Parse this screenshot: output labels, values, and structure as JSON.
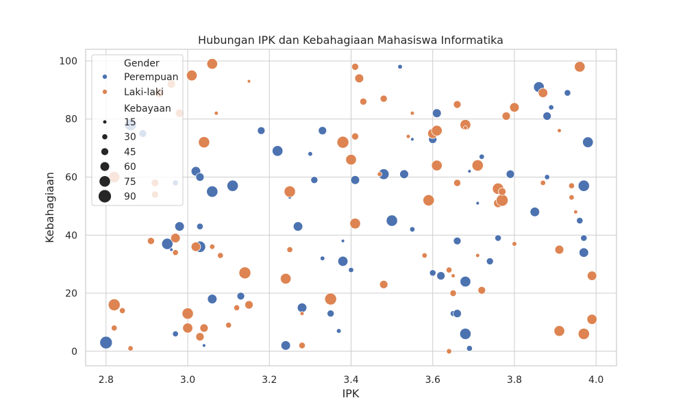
{
  "chart_data": {
    "type": "scatter",
    "title": "Hubungan IPK dan Kebahagiaan Mahasiswa Informatika",
    "xlabel": "IPK",
    "ylabel": "Kebahagiaan",
    "xlim": [
      2.75,
      4.05
    ],
    "ylim": [
      -5,
      104
    ],
    "xticks": [
      "2.8",
      "3.0",
      "3.2",
      "3.4",
      "3.6",
      "3.8",
      "4.0"
    ],
    "yticks": [
      "0",
      "20",
      "40",
      "60",
      "80",
      "100"
    ],
    "grid": true,
    "legend_position": "top-left",
    "hue_title": "Gender",
    "size_title": "Kebayaan",
    "size_legend": [
      "15",
      "30",
      "45",
      "60",
      "75",
      "90"
    ],
    "series": [
      {
        "name": "Perempuan",
        "color": "#4c72b0",
        "points": [
          [
            2.8,
            3,
            85
          ],
          [
            2.86,
            78,
            80
          ],
          [
            2.89,
            75,
            45
          ],
          [
            2.95,
            37,
            75
          ],
          [
            2.96,
            35,
            10
          ],
          [
            2.97,
            6,
            30
          ],
          [
            2.97,
            58,
            30
          ],
          [
            2.98,
            43,
            60
          ],
          [
            3.02,
            62,
            60
          ],
          [
            3.03,
            60,
            50
          ],
          [
            3.03,
            43,
            35
          ],
          [
            3.03,
            36,
            75
          ],
          [
            3.04,
            2,
            10
          ],
          [
            3.06,
            18,
            60
          ],
          [
            3.06,
            55,
            75
          ],
          [
            3.11,
            57,
            75
          ],
          [
            3.13,
            19,
            45
          ],
          [
            3.18,
            76,
            45
          ],
          [
            3.22,
            69,
            70
          ],
          [
            3.24,
            2,
            60
          ],
          [
            3.25,
            53,
            10
          ],
          [
            3.27,
            43,
            60
          ],
          [
            3.28,
            15,
            60
          ],
          [
            3.3,
            68,
            20
          ],
          [
            3.31,
            59,
            40
          ],
          [
            3.33,
            32,
            20
          ],
          [
            3.33,
            76,
            50
          ],
          [
            3.35,
            13,
            40
          ],
          [
            3.37,
            7,
            20
          ],
          [
            3.38,
            31,
            65
          ],
          [
            3.38,
            38,
            10
          ],
          [
            3.4,
            28,
            25
          ],
          [
            3.41,
            59,
            55
          ],
          [
            3.48,
            61,
            70
          ],
          [
            3.5,
            45,
            75
          ],
          [
            3.52,
            98,
            20
          ],
          [
            3.53,
            61,
            55
          ],
          [
            3.55,
            73,
            10
          ],
          [
            3.55,
            42,
            25
          ],
          [
            3.6,
            27,
            35
          ],
          [
            3.6,
            73,
            50
          ],
          [
            3.61,
            82,
            55
          ],
          [
            3.62,
            26,
            50
          ],
          [
            3.65,
            13,
            30
          ],
          [
            3.66,
            38,
            45
          ],
          [
            3.66,
            13,
            50
          ],
          [
            3.68,
            6,
            75
          ],
          [
            3.68,
            24,
            70
          ],
          [
            3.69,
            1,
            30
          ],
          [
            3.69,
            62,
            10
          ],
          [
            3.71,
            51,
            10
          ],
          [
            3.72,
            67,
            25
          ],
          [
            3.74,
            31,
            40
          ],
          [
            3.76,
            39,
            35
          ],
          [
            3.79,
            61,
            50
          ],
          [
            3.85,
            48,
            60
          ],
          [
            3.86,
            91,
            70
          ],
          [
            3.88,
            81,
            50
          ],
          [
            3.88,
            60,
            25
          ],
          [
            3.89,
            84,
            25
          ],
          [
            3.93,
            89,
            35
          ],
          [
            3.96,
            45,
            35
          ],
          [
            3.97,
            57,
            75
          ],
          [
            3.97,
            39,
            35
          ],
          [
            3.97,
            34,
            60
          ],
          [
            3.98,
            72,
            70
          ]
        ]
      },
      {
        "name": "Laki-laki",
        "color": "#dd8452",
        "points": [
          [
            2.82,
            60,
            75
          ],
          [
            2.82,
            16,
            80
          ],
          [
            2.82,
            8,
            30
          ],
          [
            2.84,
            14,
            30
          ],
          [
            2.86,
            1,
            25
          ],
          [
            2.91,
            38,
            40
          ],
          [
            2.92,
            58,
            45
          ],
          [
            2.92,
            54,
            40
          ],
          [
            2.93,
            89,
            55
          ],
          [
            2.96,
            92,
            50
          ],
          [
            2.98,
            82,
            50
          ],
          [
            2.97,
            34,
            30
          ],
          [
            2.97,
            39,
            60
          ],
          [
            3.0,
            13,
            75
          ],
          [
            3.0,
            8,
            65
          ],
          [
            3.01,
            95,
            70
          ],
          [
            3.02,
            36,
            60
          ],
          [
            3.03,
            5,
            50
          ],
          [
            3.04,
            72,
            75
          ],
          [
            3.04,
            8,
            50
          ],
          [
            3.06,
            99,
            70
          ],
          [
            3.06,
            36,
            25
          ],
          [
            3.07,
            82,
            15
          ],
          [
            3.08,
            33,
            30
          ],
          [
            3.1,
            9,
            30
          ],
          [
            3.12,
            15,
            30
          ],
          [
            3.14,
            27,
            80
          ],
          [
            3.15,
            93,
            10
          ],
          [
            3.15,
            16,
            50
          ],
          [
            3.24,
            25,
            70
          ],
          [
            3.25,
            55,
            75
          ],
          [
            3.25,
            35,
            30
          ],
          [
            3.28,
            13,
            15
          ],
          [
            3.28,
            2,
            35
          ],
          [
            3.35,
            18,
            80
          ],
          [
            3.38,
            72,
            80
          ],
          [
            3.4,
            66,
            70
          ],
          [
            3.41,
            98,
            40
          ],
          [
            3.41,
            74,
            40
          ],
          [
            3.41,
            44,
            70
          ],
          [
            3.42,
            94,
            55
          ],
          [
            3.43,
            86,
            40
          ],
          [
            3.47,
            61,
            20
          ],
          [
            3.48,
            87,
            40
          ],
          [
            3.48,
            23,
            50
          ],
          [
            3.54,
            74,
            15
          ],
          [
            3.55,
            82,
            15
          ],
          [
            3.58,
            33,
            25
          ],
          [
            3.59,
            52,
            75
          ],
          [
            3.6,
            75,
            65
          ],
          [
            3.61,
            76,
            70
          ],
          [
            3.61,
            64,
            70
          ],
          [
            3.64,
            0,
            25
          ],
          [
            3.64,
            28,
            30
          ],
          [
            3.65,
            20,
            35
          ],
          [
            3.65,
            26,
            15
          ],
          [
            3.66,
            85,
            45
          ],
          [
            3.66,
            58,
            40
          ],
          [
            3.68,
            78,
            70
          ],
          [
            3.68,
            77,
            15
          ],
          [
            3.71,
            64,
            75
          ],
          [
            3.71,
            33,
            15
          ],
          [
            3.72,
            21,
            45
          ],
          [
            3.76,
            56,
            75
          ],
          [
            3.76,
            51,
            55
          ],
          [
            3.77,
            52,
            80
          ],
          [
            3.77,
            55,
            45
          ],
          [
            3.78,
            81,
            50
          ],
          [
            3.8,
            84,
            60
          ],
          [
            3.8,
            37,
            20
          ],
          [
            3.87,
            58,
            25
          ],
          [
            3.87,
            89,
            60
          ],
          [
            3.91,
            76,
            15
          ],
          [
            3.91,
            7,
            70
          ],
          [
            3.91,
            35,
            55
          ],
          [
            3.94,
            57,
            30
          ],
          [
            3.94,
            53,
            25
          ],
          [
            3.95,
            48,
            15
          ],
          [
            3.96,
            98,
            70
          ],
          [
            3.97,
            6,
            75
          ],
          [
            3.99,
            26,
            60
          ],
          [
            3.99,
            11,
            65
          ]
        ]
      }
    ]
  }
}
